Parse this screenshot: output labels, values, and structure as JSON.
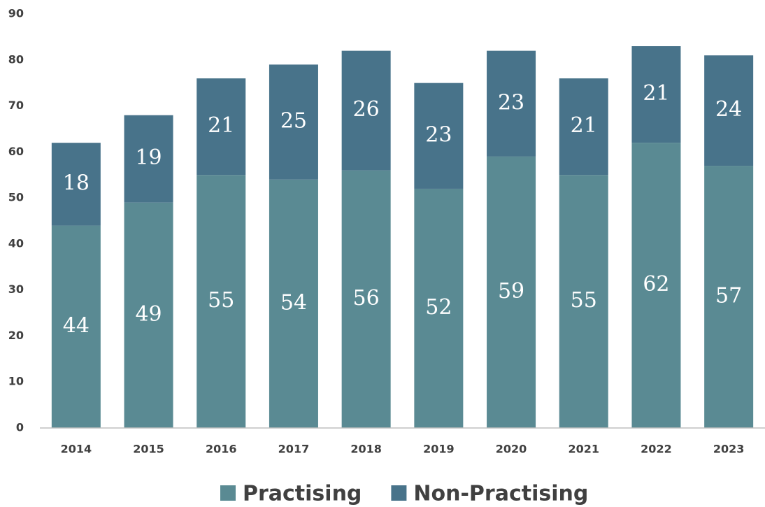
{
  "chart_data": {
    "type": "stacked_bar",
    "categories": [
      "2014",
      "2015",
      "2016",
      "2017",
      "2018",
      "2019",
      "2020",
      "2021",
      "2022",
      "2023"
    ],
    "series": [
      {
        "name": "Practising",
        "color": "#5a8a93",
        "values": [
          44,
          49,
          55,
          54,
          56,
          52,
          59,
          55,
          62,
          57
        ]
      },
      {
        "name": "Non-Practising",
        "color": "#48738a",
        "values": [
          18,
          19,
          21,
          25,
          26,
          23,
          23,
          21,
          21,
          24
        ]
      }
    ],
    "ylim": [
      0,
      90
    ],
    "yticks": [
      0,
      10,
      20,
      30,
      40,
      50,
      60,
      70,
      80,
      90
    ],
    "grid": false,
    "legend": "bottom"
  }
}
